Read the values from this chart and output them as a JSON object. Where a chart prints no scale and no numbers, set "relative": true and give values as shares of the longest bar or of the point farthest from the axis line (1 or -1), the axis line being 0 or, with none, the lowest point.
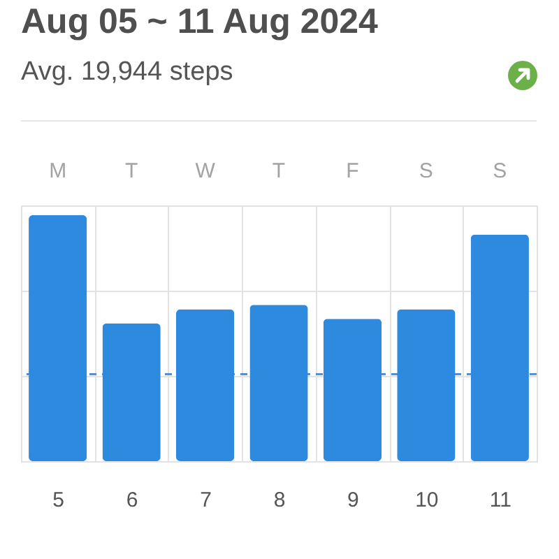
{
  "chart_data": {
    "type": "bar",
    "title": "Aug 05 ~ 11 Aug 2024",
    "subtitle": "Avg. 19,944 steps",
    "x": [
      5,
      6,
      7,
      8,
      9,
      10,
      11
    ],
    "xlim": [
      4.5,
      11.5
    ],
    "xticks": [
      5,
      6,
      7,
      8,
      9,
      10,
      11
    ],
    "annotations": [
      "M",
      "T",
      "W",
      "T",
      "F",
      "S",
      "S"
    ],
    "values": [
      1,
      0.56,
      0.617,
      0.636,
      0.579,
      0.617,
      0.921
    ],
    "color": "#2e8ade",
    "relative": true,
    "ref_lines": [
      {
        "axis": "y",
        "value": 0.354,
        "color": "#5b8ec4",
        "line_style": "dashed"
      }
    ],
    "grid": true
  }
}
